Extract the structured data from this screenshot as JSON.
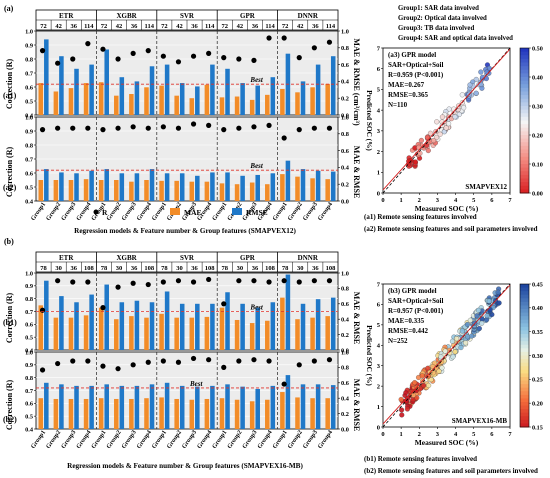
{
  "colors": {
    "r": "#000000",
    "mae": "#f28c28",
    "rmse": "#1f78c8",
    "best": "#e0322a",
    "panel": "#ececec"
  },
  "panel_labels": {
    "a": "(a)",
    "a1": "(a1)",
    "a2": "(a2)",
    "b": "(b)",
    "b1": "(b1)",
    "b2": "(b2)"
  },
  "axis": {
    "left_ylabel": "Correction (R)",
    "right_ylabel_a1": "MAE & RMSE (cm³/cm³)",
    "right_ylabel_a2": "MAE & RMSE",
    "right_ylabel_b1": "MAE & RMSE",
    "right_ylabel_b2": "MAE & RMSE",
    "left_ticks": [
      "0.4",
      "0.5",
      "0.6",
      "0.7",
      "0.8",
      "0.9",
      "1.0"
    ],
    "right_ticks": [
      "0.0",
      "0.2",
      "0.4",
      "0.6",
      "0.8",
      "1.0"
    ],
    "group_ticks": [
      "Group1",
      "Group2",
      "Group3",
      "Group4"
    ]
  },
  "headers_a": {
    "models": [
      "ETR",
      "XGBR",
      "SVR",
      "GPR",
      "DNNR"
    ],
    "numbers": [
      "72",
      "42",
      "36",
      "114"
    ]
  },
  "headers_b": {
    "models": [
      "ETR",
      "XGBR",
      "SVR",
      "GPR",
      "DNNR"
    ],
    "numbers": [
      "78",
      "30",
      "36",
      "108"
    ]
  },
  "xlabel_a": "Regression models & Feature number & Group features (SMAPVEX12)",
  "xlabel_b": "Regression models & Feature number & Group features (SMAPVEX16-MB)",
  "best_label": "Best",
  "legend": {
    "r": "R",
    "mae": "MAE",
    "rmse": "RMSE"
  },
  "group_notes": [
    "Group1: SAR data involved",
    "Group2: Optical data involved",
    "Group3: TB data involved",
    "Group4: SAR and optical data involved"
  ],
  "notes_a": [
    "(a1) Remote sensing features involved",
    "(a2) Remote sensing features and soil parameters involved"
  ],
  "notes_b": [
    "(b1) Remote sensing features involved",
    "(b2) Remote sensing features and soil parameters involved"
  ],
  "scatter_a": {
    "title": "(a3) GPR model",
    "subtitle": "SAR+Optical+Soil",
    "r": "R=0.959 (P<0.001)",
    "mae": "MAE=0.267",
    "rmse": "RMSE=0.365",
    "n": "N=110",
    "corner": "SMAPVEX12",
    "xlabel": "Measured SOC (%)",
    "cbar_label": "Measured SSM (cm³/cm³)",
    "ticks": [
      "0",
      "1",
      "2",
      "3",
      "4",
      "5",
      "6",
      "7"
    ],
    "cbar_ticks": [
      "0.00",
      "0.10",
      "0.20",
      "0.30",
      "0.40",
      "0.50"
    ]
  },
  "scatter_b": {
    "title": "(b3) GPR model",
    "subtitle": "SAR+Optical+Soil",
    "r": "R=0.957 (P<0.001)",
    "mae": "MAE=0.335",
    "rmse": "RMSE=0.442",
    "n": "N=252",
    "corner": "SMAPVEX16-MB",
    "xlabel": "Measured SOC (%)",
    "cbar_label": "Measured SSM (cm³/cm³)",
    "ticks": [
      "0",
      "1",
      "2",
      "3",
      "4",
      "5",
      "6",
      "7"
    ],
    "cbar_ticks": [
      "0.15",
      "0.20",
      "0.25",
      "0.30",
      "0.35",
      "0.40",
      "0.45"
    ]
  },
  "chart_data": [
    {
      "type": "bar",
      "panel": "a1",
      "ylim": [
        0.4,
        1.0
      ],
      "y2lim": [
        0.0,
        1.0
      ],
      "series": [
        {
          "name": "R",
          "values": [
            0.86,
            0.77,
            0.8,
            0.91,
            0.87,
            0.8,
            0.84,
            0.86,
            0.82,
            0.78,
            0.82,
            0.84,
            0.81,
            0.8,
            0.79,
            0.95,
            0.95,
            0.81,
            0.88,
            0.92
          ]
        },
        {
          "name": "MAE",
          "values": [
            0.38,
            0.28,
            0.32,
            0.38,
            0.39,
            0.23,
            0.25,
            0.33,
            0.35,
            0.23,
            0.2,
            0.36,
            0.21,
            0.22,
            0.18,
            0.24,
            0.31,
            0.27,
            0.33,
            0.37
          ]
        },
        {
          "name": "RMSE",
          "values": [
            0.9,
            0.7,
            0.55,
            0.6,
            0.78,
            0.45,
            0.4,
            0.58,
            0.6,
            0.38,
            0.34,
            0.6,
            0.55,
            0.38,
            0.35,
            0.45,
            0.73,
            0.4,
            0.6,
            0.7
          ]
        }
      ]
    },
    {
      "type": "bar",
      "panel": "a2",
      "ylim": [
        0.4,
        1.0
      ],
      "y2lim": [
        0.0,
        1.0
      ],
      "series": [
        {
          "name": "R",
          "values": [
            0.91,
            0.92,
            0.92,
            0.92,
            0.91,
            0.92,
            0.93,
            0.92,
            0.93,
            0.92,
            0.95,
            0.94,
            0.91,
            0.92,
            0.93,
            0.94,
            0.85,
            0.91,
            0.92,
            0.92
          ]
        },
        {
          "name": "MAE",
          "values": [
            0.25,
            0.25,
            0.25,
            0.26,
            0.25,
            0.25,
            0.23,
            0.25,
            0.24,
            0.24,
            0.23,
            0.23,
            0.21,
            0.2,
            0.22,
            0.2,
            0.32,
            0.29,
            0.27,
            0.26
          ]
        },
        {
          "name": "RMSE",
          "values": [
            0.38,
            0.34,
            0.33,
            0.36,
            0.38,
            0.33,
            0.33,
            0.38,
            0.33,
            0.33,
            0.3,
            0.34,
            0.34,
            0.3,
            0.31,
            0.33,
            0.48,
            0.38,
            0.36,
            0.35
          ]
        }
      ]
    },
    {
      "type": "bar",
      "panel": "b1",
      "ylim": [
        0.4,
        1.0
      ],
      "y2lim": [
        0.0,
        1.0
      ],
      "series": [
        {
          "name": "R",
          "values": [
            0.71,
            0.94,
            0.93,
            0.93,
            0.73,
            0.89,
            0.92,
            0.91,
            0.93,
            0.94,
            0.93,
            0.95,
            0.76,
            0.94,
            0.94,
            0.93,
            0.94,
            0.93,
            0.94,
            0.94
          ]
        },
        {
          "name": "MAE",
          "values": [
            0.58,
            0.42,
            0.42,
            0.45,
            0.55,
            0.4,
            0.44,
            0.42,
            0.47,
            0.42,
            0.42,
            0.43,
            0.55,
            0.39,
            0.35,
            0.38,
            0.68,
            0.4,
            0.42,
            0.44
          ]
        },
        {
          "name": "RMSE",
          "values": [
            0.9,
            0.7,
            0.62,
            0.72,
            0.85,
            0.62,
            0.64,
            0.62,
            0.76,
            0.6,
            0.6,
            0.6,
            0.75,
            0.6,
            0.55,
            0.62,
            0.98,
            0.6,
            0.66,
            0.68
          ]
        }
      ]
    },
    {
      "type": "bar",
      "panel": "b2",
      "ylim": [
        0.4,
        1.0
      ],
      "y2lim": [
        0.0,
        1.0
      ],
      "series": [
        {
          "name": "R",
          "values": [
            0.86,
            0.91,
            0.93,
            0.93,
            0.89,
            0.87,
            0.9,
            0.92,
            0.93,
            0.92,
            0.95,
            0.94,
            0.88,
            0.93,
            0.94,
            0.93,
            0.75,
            0.9,
            0.93,
            0.94
          ]
        },
        {
          "name": "MAE",
          "values": [
            0.4,
            0.39,
            0.39,
            0.39,
            0.4,
            0.39,
            0.39,
            0.4,
            0.41,
            0.39,
            0.38,
            0.39,
            0.4,
            0.38,
            0.36,
            0.38,
            0.48,
            0.41,
            0.4,
            0.4
          ]
        },
        {
          "name": "RMSE",
          "values": [
            0.6,
            0.58,
            0.56,
            0.56,
            0.58,
            0.56,
            0.56,
            0.58,
            0.6,
            0.56,
            0.55,
            0.56,
            0.58,
            0.55,
            0.52,
            0.56,
            0.7,
            0.58,
            0.58,
            0.57
          ]
        }
      ]
    }
  ]
}
